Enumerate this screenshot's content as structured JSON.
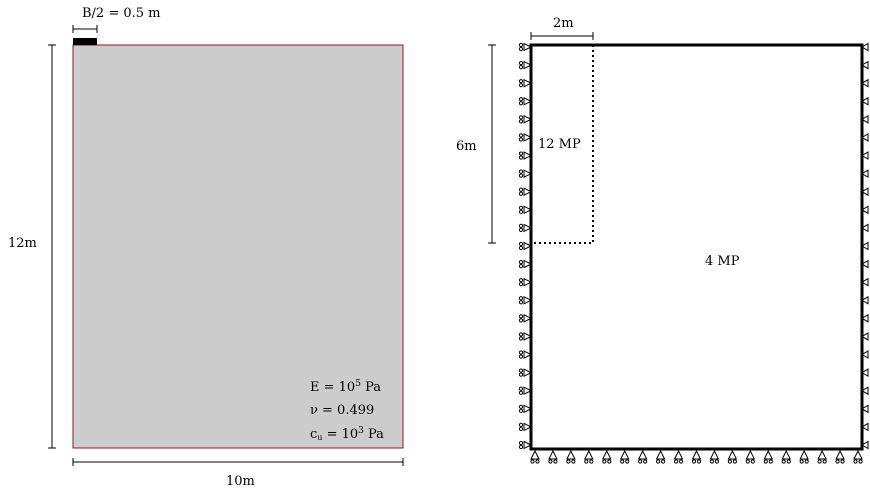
{
  "left_panel": {
    "footing_label": "B/2 = 0.5 m",
    "height_label": "12m",
    "width_label": "10m",
    "props": {
      "e_prefix": "E = 10",
      "e_exp": "5",
      "e_unit": " Pa",
      "nu": "ν = 0.499",
      "cu_prefix": "c",
      "cu_sub": "u",
      "cu_mid": " = 10",
      "cu_exp": "3",
      "cu_unit": " Pa"
    },
    "colors": {
      "soil_fill": "#cccccc",
      "soil_border": "#8b1a1a",
      "footing": "#000000"
    }
  },
  "right_panel": {
    "top_dim_label": "2m",
    "side_dim_label": "6m",
    "fine_region_label": "12 MP",
    "coarse_region_label": "4 MP",
    "boundary": {
      "left_roller_count": 23,
      "right_roller_count": 23,
      "bottom_pin_count": 19
    }
  }
}
